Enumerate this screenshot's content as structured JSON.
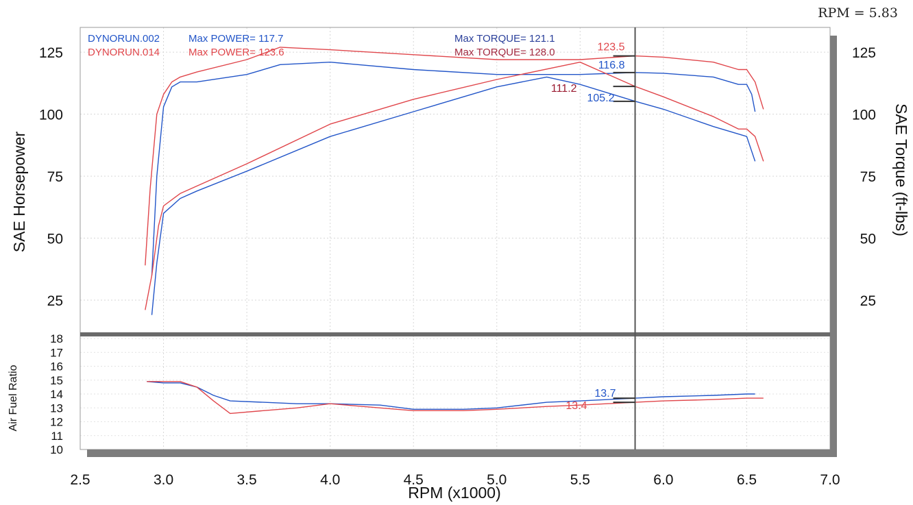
{
  "header": {
    "rpm_readout": "RPM = 5.83"
  },
  "legend": {
    "run1": {
      "name": "DYNORUN.002",
      "max_power": "Max POWER= 117.7",
      "max_torque": "Max TORQUE= 121.1",
      "color": "#2255c8"
    },
    "run2": {
      "name": "DYNORUN.014",
      "max_power": "Max POWER= 123.6",
      "max_torque": "Max TORQUE= 128.0",
      "color": "#e0464b"
    }
  },
  "axes": {
    "x_title": "RPM (x1000)",
    "y_left_title": "SAE Horsepower",
    "y_right_title": "SAE Torque (ft-lbs)",
    "y_bottom_title": "Air Fuel Ratio"
  },
  "chart_data": [
    {
      "type": "line",
      "title": "",
      "xlabel": "RPM (x1000)",
      "ylabel": "SAE Horsepower",
      "ylabel_right": "SAE Torque (ft-lbs)",
      "xlim": [
        2.5,
        7.0
      ],
      "ylim": [
        12,
        135
      ],
      "x_ticks": [
        "2.5",
        "3.0",
        "3.5",
        "4.0",
        "4.5",
        "5.0",
        "5.5",
        "6.0",
        "6.5",
        "7.0"
      ],
      "y_ticks": [
        "25",
        "50",
        "75",
        "100",
        "125"
      ],
      "cursor_rpm": 5.83,
      "series": [
        {
          "name": "DYNORUN.002",
          "measure": "torque",
          "color": "#2255c8",
          "x": [
            2.93,
            2.96,
            3.0,
            3.05,
            3.1,
            3.2,
            3.5,
            3.7,
            4.0,
            4.5,
            5.0,
            5.5,
            5.83,
            6.0,
            6.3,
            6.45,
            6.5,
            6.53,
            6.55
          ],
          "y": [
            35,
            75,
            103,
            111,
            113,
            113,
            116,
            120,
            121,
            118,
            116,
            116,
            116.8,
            116.5,
            115,
            112,
            112,
            108,
            101
          ]
        },
        {
          "name": "DYNORUN.014",
          "measure": "torque",
          "color": "#e0464b",
          "x": [
            2.89,
            2.92,
            2.96,
            3.0,
            3.05,
            3.1,
            3.2,
            3.5,
            3.7,
            4.0,
            4.5,
            5.0,
            5.5,
            5.83,
            6.0,
            6.3,
            6.45,
            6.5,
            6.55,
            6.6
          ],
          "y": [
            39,
            70,
            100,
            108,
            113,
            115,
            117,
            122,
            127,
            126,
            124,
            122,
            122,
            123.5,
            123,
            121,
            118,
            118,
            113,
            102
          ]
        },
        {
          "name": "DYNORUN.002",
          "measure": "horsepower",
          "color": "#2255c8",
          "x": [
            2.93,
            2.96,
            3.0,
            3.1,
            3.2,
            3.5,
            4.0,
            4.5,
            5.0,
            5.3,
            5.5,
            5.83,
            6.0,
            6.3,
            6.45,
            6.5,
            6.55
          ],
          "y": [
            19,
            40,
            60,
            66,
            69,
            77,
            91,
            101,
            111,
            115,
            112,
            105.2,
            102,
            95,
            92,
            91,
            81
          ]
        },
        {
          "name": "DYNORUN.014",
          "measure": "horsepower",
          "color": "#e0464b",
          "x": [
            2.89,
            2.93,
            2.97,
            3.0,
            3.1,
            3.2,
            3.5,
            4.0,
            4.5,
            5.0,
            5.5,
            5.83,
            6.0,
            6.3,
            6.45,
            6.5,
            6.55,
            6.6
          ],
          "y": [
            21,
            35,
            55,
            63,
            68,
            71,
            80,
            96,
            106,
            114,
            121,
            111.2,
            107,
            99,
            94,
            94,
            91,
            81
          ]
        }
      ],
      "annotations": [
        {
          "text": "123.5",
          "x": 5.83,
          "y": 123.5,
          "color": "#e0464b"
        },
        {
          "text": "116.8",
          "x": 5.83,
          "y": 116.8,
          "color": "#2255c8"
        },
        {
          "text": "111.2",
          "x": 5.83,
          "y": 111.2,
          "color": "#9a1a30"
        },
        {
          "text": "105.2",
          "x": 5.83,
          "y": 105.2,
          "color": "#2255c8"
        }
      ]
    },
    {
      "type": "line",
      "title": "",
      "xlabel": "RPM (x1000)",
      "ylabel": "Air Fuel Ratio",
      "xlim": [
        2.5,
        7.0
      ],
      "ylim": [
        10,
        18
      ],
      "y_ticks": [
        "10",
        "11",
        "12",
        "13",
        "14",
        "15",
        "16",
        "17",
        "18"
      ],
      "series": [
        {
          "name": "DYNORUN.002",
          "color": "#2255c8",
          "x": [
            2.9,
            3.0,
            3.1,
            3.2,
            3.3,
            3.4,
            3.6,
            3.8,
            4.0,
            4.3,
            4.5,
            4.8,
            5.0,
            5.3,
            5.5,
            5.83,
            6.0,
            6.3,
            6.5,
            6.55
          ],
          "y": [
            14.9,
            14.8,
            14.8,
            14.5,
            13.9,
            13.5,
            13.4,
            13.3,
            13.3,
            13.2,
            12.9,
            12.9,
            13.0,
            13.4,
            13.5,
            13.7,
            13.8,
            13.9,
            14.0,
            14.0
          ]
        },
        {
          "name": "DYNORUN.014",
          "color": "#e0464b",
          "x": [
            2.9,
            3.0,
            3.1,
            3.2,
            3.3,
            3.4,
            3.6,
            3.8,
            4.0,
            4.3,
            4.5,
            4.8,
            5.0,
            5.3,
            5.5,
            5.83,
            6.0,
            6.3,
            6.5,
            6.6
          ],
          "y": [
            14.9,
            14.9,
            14.9,
            14.5,
            13.5,
            12.6,
            12.8,
            13.0,
            13.3,
            13.0,
            12.8,
            12.8,
            12.9,
            13.1,
            13.2,
            13.4,
            13.5,
            13.6,
            13.7,
            13.7
          ]
        }
      ],
      "annotations": [
        {
          "text": "13.4",
          "x": 5.83,
          "y": 13.4,
          "color": "#e0464b"
        },
        {
          "text": "13.7",
          "x": 5.83,
          "y": 13.7,
          "color": "#2255c8"
        }
      ]
    }
  ]
}
